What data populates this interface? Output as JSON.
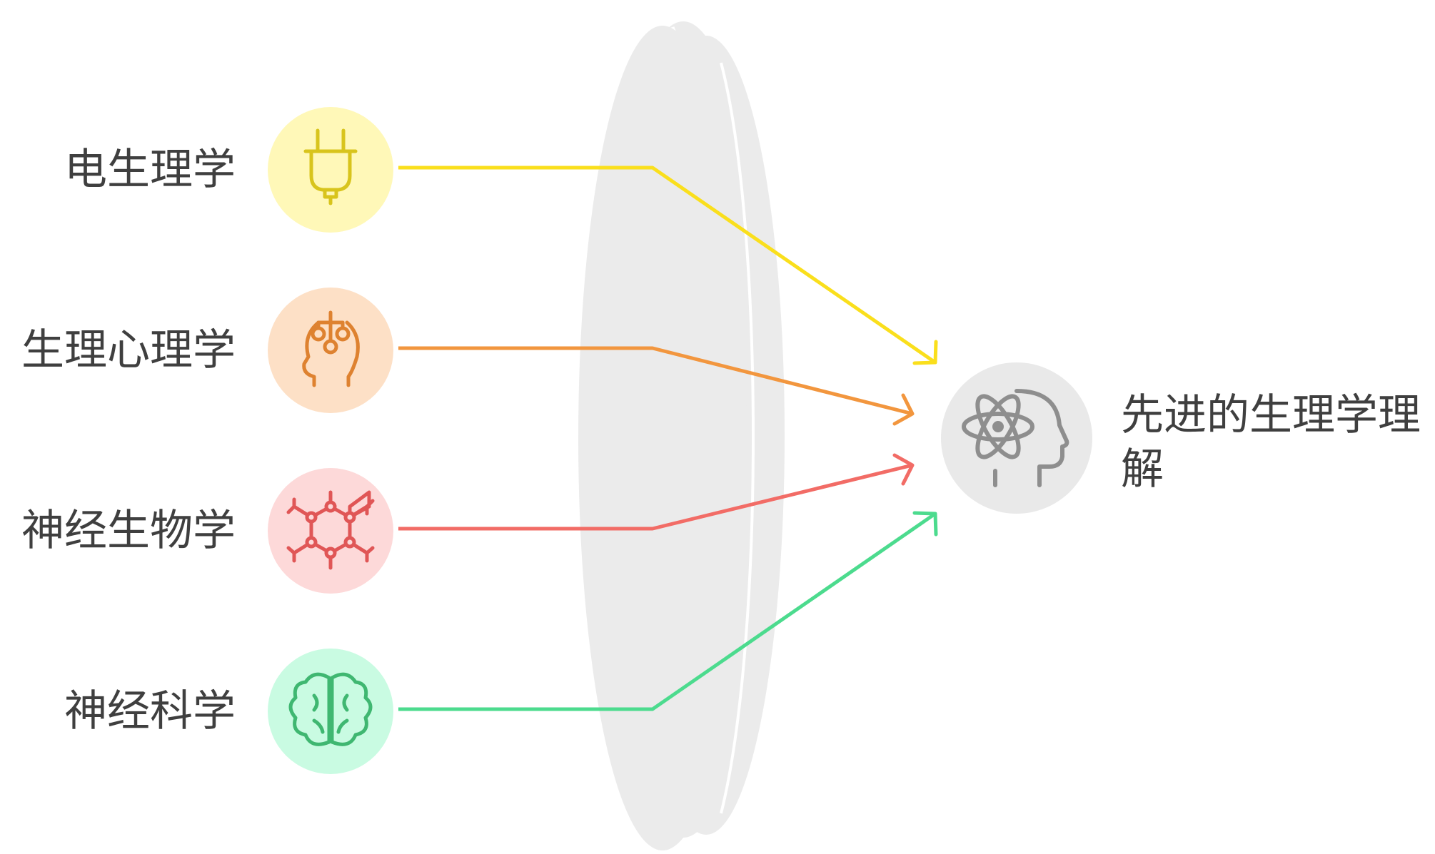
{
  "inputs": [
    {
      "label": "电生理学",
      "icon": "plug-icon",
      "circle_color": "#FFF8B8",
      "stroke_color": "#D8C41C",
      "arrow_color": "#FADF1C"
    },
    {
      "label": "生理心理学",
      "icon": "head-circuit-icon",
      "circle_color": "#FDE0C6",
      "stroke_color": "#DE8230",
      "arrow_color": "#F2963E"
    },
    {
      "label": "神经生物学",
      "icon": "molecule-icon",
      "circle_color": "#FDD9D9",
      "stroke_color": "#E05656",
      "arrow_color": "#F26C66"
    },
    {
      "label": "神经科学",
      "icon": "brain-icon",
      "circle_color": "#C9FBE2",
      "stroke_color": "#3FB771",
      "arrow_color": "#4CDB8E"
    }
  ],
  "lens": {
    "icon": "lens-icon",
    "color": "#EBEBEB"
  },
  "output": {
    "label": "先进的生理学理解",
    "icon": "atom-head-icon",
    "circle_color": "#E9E9E9",
    "stroke_color": "#8E8E8E"
  }
}
